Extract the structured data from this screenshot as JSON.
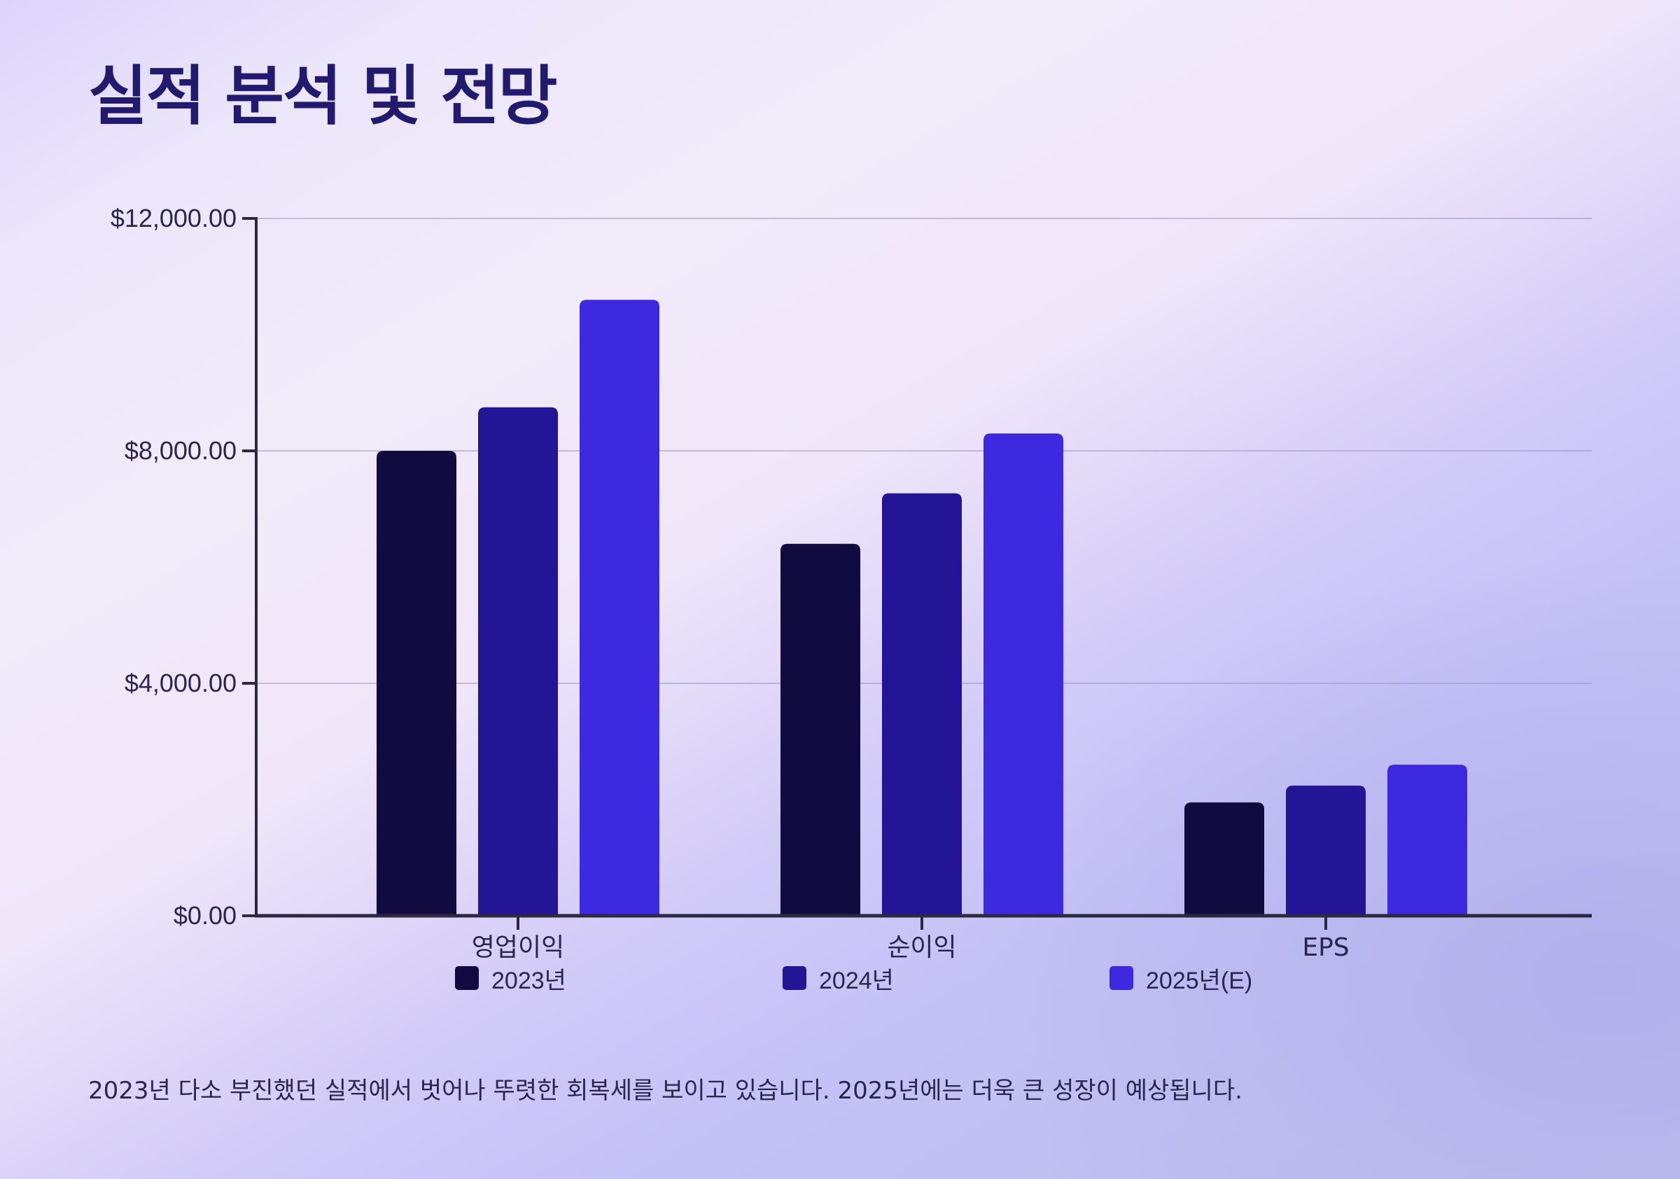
{
  "title": "실적 분석 및 전망",
  "footnote": "2023년 다소 부진했던 실적에서 벗어나 뚜렷한 회복세를 보이고 있습니다. 2025년에는 더욱 큰 성장이 예상됩니다.",
  "chart_data": {
    "type": "bar",
    "title": "",
    "xlabel": "",
    "ylabel": "",
    "categories": [
      "영업이익",
      "순이익",
      "EPS"
    ],
    "series": [
      {
        "name": "2023년",
        "color": "#110b40",
        "values": [
          8000,
          6400,
          1950
        ]
      },
      {
        "name": "2024년",
        "color": "#231595",
        "values": [
          8750,
          7270,
          2240
        ]
      },
      {
        "name": "2025년(E)",
        "color": "#3d2ae0",
        "values": [
          10600,
          8300,
          2600
        ]
      }
    ],
    "ylim": [
      0,
      12000
    ],
    "yticks": [
      0,
      4000,
      8000,
      12000
    ],
    "ytick_labels": [
      "$0.00",
      "$4,000.00",
      "$8,000.00",
      "$12,000.00"
    ],
    "grid": true,
    "legend_position": "bottom"
  }
}
